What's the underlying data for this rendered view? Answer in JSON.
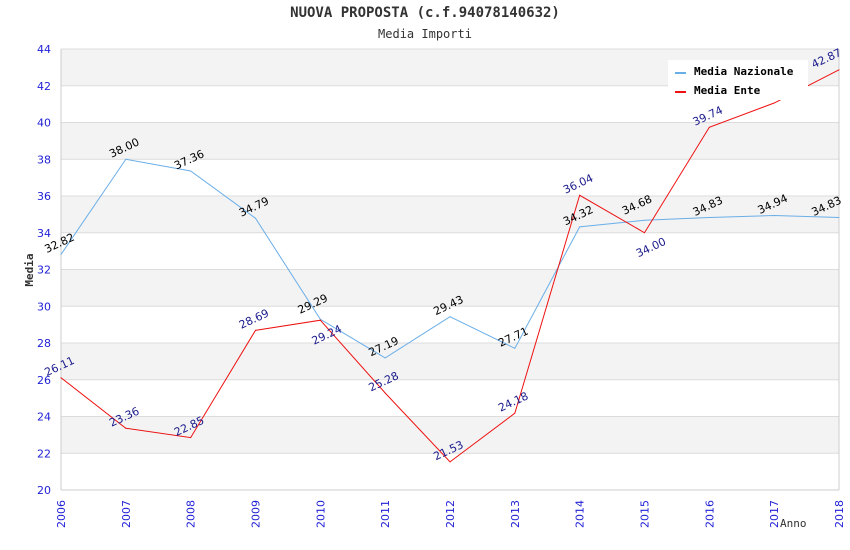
{
  "chart_data": {
    "type": "line",
    "title": "NUOVA PROPOSTA (c.f.94078140632)",
    "subtitle": "Media Importi",
    "xlabel": "Anno",
    "ylabel": "Media",
    "x": [
      "2006",
      "2007",
      "2008",
      "2009",
      "2010",
      "2011",
      "2012",
      "2013",
      "2014",
      "2015",
      "2016",
      "2017",
      "2018"
    ],
    "ylim": [
      20,
      44
    ],
    "yticks": [
      20,
      22,
      24,
      26,
      28,
      30,
      32,
      34,
      36,
      38,
      40,
      42,
      44
    ],
    "grid": true,
    "legend_position": "top-right",
    "series": [
      {
        "name": "Media Nazionale",
        "color": "#6aaee8",
        "label_color": "#000000",
        "values": [
          32.82,
          38.0,
          37.36,
          34.79,
          29.29,
          27.19,
          29.43,
          27.71,
          34.32,
          34.68,
          34.83,
          34.94,
          34.83
        ],
        "labels": [
          "32.82",
          "38.00",
          "37.36",
          "34.79",
          "29.29",
          "27.19",
          "29.43",
          "27.71",
          "34.32",
          "34.68",
          "34.83",
          "34.94",
          "34.83"
        ]
      },
      {
        "name": "Media Ente",
        "color": "#ee1111",
        "label_color": "#1a1a8c",
        "values": [
          26.11,
          23.36,
          22.85,
          28.69,
          29.24,
          25.28,
          21.53,
          24.18,
          36.04,
          34.0,
          39.74,
          41.06,
          42.87
        ],
        "labels": [
          "26.11",
          "23.36",
          "22.85",
          "28.69",
          "29.24",
          "25.28",
          "21.53",
          "24.18",
          "36.04",
          "34.00",
          "39.74",
          "",
          "42.87"
        ]
      }
    ]
  }
}
